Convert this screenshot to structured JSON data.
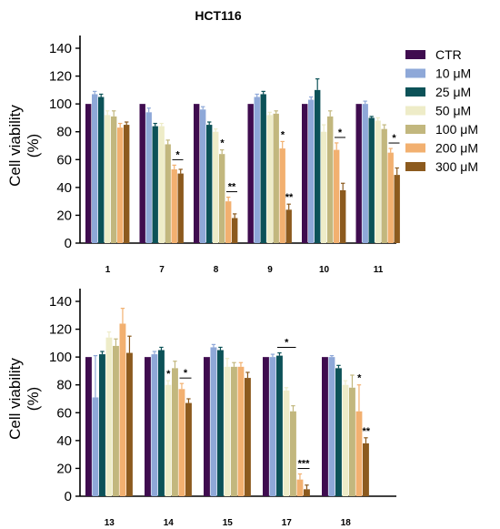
{
  "title": "HCT116",
  "legend": [
    {
      "name": "CTR",
      "color": "#3f0c4f"
    },
    {
      "name": "10 μM",
      "color": "#8ea8d8"
    },
    {
      "name": "25 μM",
      "color": "#0c5258"
    },
    {
      "name": "50 μM",
      "color": "#eeecc8"
    },
    {
      "name": "100 μM",
      "color": "#c2b77e"
    },
    {
      "name": "200 μM",
      "color": "#f2b070"
    },
    {
      "name": "300 μM",
      "color": "#8c5a1e"
    }
  ],
  "chart_data": [
    {
      "type": "bar",
      "title": "HCT116",
      "ylabel": "Cell viability\n(%)",
      "xlabel": "",
      "ylim": [
        0,
        140
      ],
      "yticks": [
        0,
        20,
        40,
        60,
        80,
        100,
        120,
        140
      ],
      "grid": false,
      "legend_position": "right",
      "categories": [
        "1",
        "7",
        "8",
        "9",
        "10",
        "11"
      ],
      "series": [
        {
          "name": "CTR",
          "values": [
            100,
            100,
            100,
            100,
            100,
            100
          ],
          "errors": [
            0,
            0,
            0,
            0,
            0,
            0
          ]
        },
        {
          "name": "10 μM",
          "values": [
            107,
            94,
            96,
            105,
            103,
            100
          ],
          "errors": [
            2,
            3,
            2,
            2,
            2,
            2
          ]
        },
        {
          "name": "25 μM",
          "values": [
            105,
            84,
            85,
            107,
            110,
            90
          ],
          "errors": [
            2,
            2,
            2,
            2,
            8,
            1
          ]
        },
        {
          "name": "50 μM",
          "values": [
            92,
            84,
            80,
            92,
            80,
            88
          ],
          "errors": [
            3,
            2,
            2,
            2,
            5,
            2
          ]
        },
        {
          "name": "100 μM",
          "values": [
            91,
            71,
            64,
            93,
            91,
            82
          ],
          "errors": [
            4,
            3,
            3,
            2,
            4,
            3
          ]
        },
        {
          "name": "200 μM",
          "values": [
            83,
            53,
            30,
            68,
            67,
            65
          ],
          "errors": [
            3,
            3,
            3,
            5,
            5,
            3
          ]
        },
        {
          "name": "300 μM",
          "values": [
            85,
            50,
            18,
            24,
            38,
            49
          ],
          "errors": [
            2,
            3,
            3,
            4,
            5,
            5
          ]
        }
      ],
      "annotations": [
        {
          "category": "7",
          "text": "*",
          "bracket": true
        },
        {
          "category": "8",
          "text": "*",
          "bracket": false,
          "series": "100 μM"
        },
        {
          "category": "8",
          "text": "**",
          "bracket": true
        },
        {
          "category": "9",
          "text": "*",
          "bracket": false,
          "series": "200 μM"
        },
        {
          "category": "9",
          "text": "**",
          "bracket": false,
          "series": "300 μM"
        },
        {
          "category": "10",
          "text": "*",
          "bracket": true
        },
        {
          "category": "11",
          "text": "*",
          "bracket": true
        }
      ]
    },
    {
      "type": "bar",
      "title": "",
      "ylabel": "Cell viability\n(%)",
      "xlabel": "",
      "ylim": [
        0,
        140
      ],
      "yticks": [
        0,
        20,
        40,
        60,
        80,
        100,
        120,
        140
      ],
      "grid": false,
      "categories": [
        "13",
        "14",
        "15",
        "17",
        "18"
      ],
      "series": [
        {
          "name": "CTR",
          "values": [
            100,
            100,
            100,
            100,
            100
          ],
          "errors": [
            0,
            0,
            0,
            0,
            0
          ]
        },
        {
          "name": "10 μM",
          "values": [
            71,
            102,
            107,
            100,
            100
          ],
          "errors": [
            30,
            2,
            2,
            2,
            1
          ]
        },
        {
          "name": "25 μM",
          "values": [
            102,
            105,
            105,
            101,
            92
          ],
          "errors": [
            2,
            2,
            2,
            2,
            2
          ]
        },
        {
          "name": "50 μM",
          "values": [
            114,
            80,
            93,
            76,
            80
          ],
          "errors": [
            4,
            3,
            6,
            2,
            3
          ]
        },
        {
          "name": "100 μM",
          "values": [
            108,
            92,
            93,
            61,
            78
          ],
          "errors": [
            5,
            5,
            3,
            4,
            9
          ]
        },
        {
          "name": "200 μM",
          "values": [
            124,
            77,
            93,
            12,
            61
          ],
          "errors": [
            11,
            4,
            3,
            4,
            19
          ]
        },
        {
          "name": "300 μM",
          "values": [
            103,
            67,
            85,
            5,
            38
          ],
          "errors": [
            12,
            3,
            4,
            3,
            4
          ]
        }
      ],
      "annotations": [
        {
          "category": "14",
          "text": "*",
          "bracket": false,
          "series": "50 μM"
        },
        {
          "category": "14",
          "text": "*",
          "bracket": true
        },
        {
          "category": "17",
          "text": "*",
          "bracket": true,
          "left": "25 μM"
        },
        {
          "category": "17",
          "text": "***",
          "bracket": true
        },
        {
          "category": "18",
          "text": "*",
          "bracket": false,
          "series": "200 μM"
        },
        {
          "category": "18",
          "text": "**",
          "bracket": false,
          "series": "300 μM"
        }
      ]
    }
  ]
}
